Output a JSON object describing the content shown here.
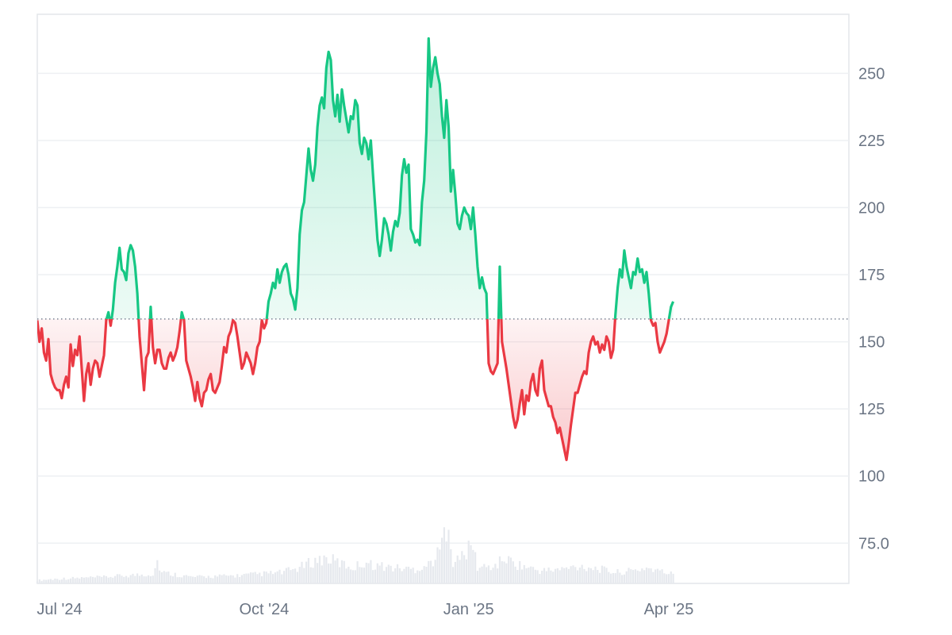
{
  "chart_data": {
    "type": "area",
    "title": "",
    "xlabel": "",
    "ylabel": "",
    "baseline_value": 158.5,
    "ylim": [
      60,
      272
    ],
    "y_ticks": [
      {
        "value": 250,
        "label": "250"
      },
      {
        "value": 225,
        "label": "225"
      },
      {
        "value": 200,
        "label": "200"
      },
      {
        "value": 175,
        "label": "175"
      },
      {
        "value": 150,
        "label": "150"
      },
      {
        "value": 125,
        "label": "125"
      },
      {
        "value": 100,
        "label": "100"
      },
      {
        "value": 75,
        "label": "75.0"
      }
    ],
    "x_ticks": [
      {
        "index": 10,
        "label": "Jul '24"
      },
      {
        "index": 102,
        "label": "Oct '24"
      },
      {
        "index": 194,
        "label": "Jan '25"
      },
      {
        "index": 284,
        "label": "Apr '25"
      }
    ],
    "x_range": [
      0,
      365
    ],
    "colors": {
      "above": "#16c784",
      "below": "#ea3943",
      "grid": "#eef0f3",
      "baseline": "#7a8393",
      "volume": "#e6e9ee"
    },
    "price_anchors": [
      [
        0,
        158
      ],
      [
        1,
        150
      ],
      [
        2,
        155
      ],
      [
        3,
        146
      ],
      [
        4,
        143
      ],
      [
        5,
        151
      ],
      [
        6,
        138
      ],
      [
        7,
        135
      ],
      [
        8,
        133
      ],
      [
        9,
        132
      ],
      [
        10,
        132
      ],
      [
        11,
        129
      ],
      [
        12,
        134
      ],
      [
        13,
        137
      ],
      [
        14,
        133
      ],
      [
        15,
        149
      ],
      [
        16,
        141
      ],
      [
        17,
        147
      ],
      [
        18,
        145
      ],
      [
        19,
        152
      ],
      [
        20,
        140
      ],
      [
        21,
        128
      ],
      [
        22,
        138
      ],
      [
        23,
        142
      ],
      [
        24,
        134
      ],
      [
        25,
        140
      ],
      [
        26,
        143
      ],
      [
        27,
        142
      ],
      [
        28,
        137
      ],
      [
        29,
        141
      ],
      [
        30,
        145
      ],
      [
        31,
        158
      ],
      [
        32,
        161
      ],
      [
        33,
        156
      ],
      [
        34,
        162
      ],
      [
        35,
        172
      ],
      [
        36,
        178
      ],
      [
        37,
        185
      ],
      [
        38,
        177
      ],
      [
        39,
        176
      ],
      [
        40,
        173
      ],
      [
        41,
        183
      ],
      [
        42,
        186
      ],
      [
        43,
        184
      ],
      [
        44,
        178
      ],
      [
        45,
        168
      ],
      [
        46,
        152
      ],
      [
        47,
        142
      ],
      [
        48,
        132
      ],
      [
        49,
        144
      ],
      [
        50,
        146
      ],
      [
        51,
        163
      ],
      [
        52,
        148
      ],
      [
        53,
        142
      ],
      [
        54,
        147
      ],
      [
        55,
        147
      ],
      [
        56,
        142
      ],
      [
        57,
        140
      ],
      [
        58,
        140
      ],
      [
        59,
        144
      ],
      [
        60,
        146
      ],
      [
        61,
        143
      ],
      [
        62,
        145
      ],
      [
        63,
        148
      ],
      [
        64,
        154
      ],
      [
        65,
        161
      ],
      [
        66,
        158
      ],
      [
        67,
        143
      ],
      [
        68,
        140
      ],
      [
        69,
        137
      ],
      [
        70,
        133
      ],
      [
        71,
        128
      ],
      [
        72,
        135
      ],
      [
        73,
        129
      ],
      [
        74,
        126
      ],
      [
        75,
        131
      ],
      [
        76,
        132
      ],
      [
        77,
        136
      ],
      [
        78,
        138
      ],
      [
        79,
        132
      ],
      [
        80,
        131
      ],
      [
        81,
        133
      ],
      [
        82,
        135
      ],
      [
        83,
        141
      ],
      [
        84,
        148
      ],
      [
        85,
        146
      ],
      [
        86,
        152
      ],
      [
        87,
        154
      ],
      [
        88,
        158
      ],
      [
        89,
        157
      ],
      [
        90,
        152
      ],
      [
        91,
        146
      ],
      [
        92,
        140
      ],
      [
        93,
        142
      ],
      [
        94,
        146
      ],
      [
        95,
        144
      ],
      [
        96,
        142
      ],
      [
        97,
        138
      ],
      [
        98,
        142
      ],
      [
        99,
        148
      ],
      [
        100,
        150
      ],
      [
        101,
        158
      ],
      [
        102,
        155
      ],
      [
        103,
        157
      ],
      [
        104,
        165
      ],
      [
        105,
        168
      ],
      [
        106,
        172
      ],
      [
        107,
        170
      ],
      [
        108,
        177
      ],
      [
        109,
        172
      ],
      [
        110,
        176
      ],
      [
        111,
        178
      ],
      [
        112,
        179
      ],
      [
        113,
        175
      ],
      [
        114,
        168
      ],
      [
        115,
        166
      ],
      [
        116,
        162
      ],
      [
        117,
        170
      ],
      [
        118,
        190
      ],
      [
        119,
        199
      ],
      [
        120,
        202
      ],
      [
        121,
        212
      ],
      [
        122,
        222
      ],
      [
        123,
        214
      ],
      [
        124,
        210
      ],
      [
        125,
        216
      ],
      [
        126,
        230
      ],
      [
        127,
        238
      ],
      [
        128,
        241
      ],
      [
        129,
        237
      ],
      [
        130,
        252
      ],
      [
        131,
        258
      ],
      [
        132,
        255
      ],
      [
        133,
        240
      ],
      [
        134,
        234
      ],
      [
        135,
        242
      ],
      [
        136,
        232
      ],
      [
        137,
        244
      ],
      [
        138,
        238
      ],
      [
        139,
        233
      ],
      [
        140,
        228
      ],
      [
        141,
        234
      ],
      [
        142,
        233
      ],
      [
        143,
        240
      ],
      [
        144,
        238
      ],
      [
        145,
        224
      ],
      [
        146,
        220
      ],
      [
        147,
        226
      ],
      [
        148,
        224
      ],
      [
        149,
        218
      ],
      [
        150,
        225
      ],
      [
        151,
        212
      ],
      [
        152,
        200
      ],
      [
        153,
        188
      ],
      [
        154,
        182
      ],
      [
        155,
        188
      ],
      [
        156,
        196
      ],
      [
        157,
        194
      ],
      [
        158,
        190
      ],
      [
        159,
        184
      ],
      [
        160,
        191
      ],
      [
        161,
        195
      ],
      [
        162,
        193
      ],
      [
        163,
        198
      ],
      [
        164,
        212
      ],
      [
        165,
        218
      ],
      [
        166,
        213
      ],
      [
        167,
        216
      ],
      [
        168,
        192
      ],
      [
        169,
        190
      ],
      [
        170,
        187
      ],
      [
        171,
        188
      ],
      [
        172,
        186
      ],
      [
        173,
        202
      ],
      [
        174,
        210
      ],
      [
        175,
        228
      ],
      [
        176,
        263
      ],
      [
        177,
        245
      ],
      [
        178,
        252
      ],
      [
        179,
        256
      ],
      [
        180,
        250
      ],
      [
        181,
        246
      ],
      [
        182,
        234
      ],
      [
        183,
        226
      ],
      [
        184,
        240
      ],
      [
        185,
        230
      ],
      [
        186,
        206
      ],
      [
        187,
        214
      ],
      [
        188,
        205
      ],
      [
        189,
        194
      ],
      [
        190,
        192
      ],
      [
        191,
        197
      ],
      [
        192,
        200
      ],
      [
        193,
        198
      ],
      [
        194,
        197
      ],
      [
        195,
        192
      ],
      [
        196,
        200
      ],
      [
        197,
        190
      ],
      [
        198,
        178
      ],
      [
        199,
        170
      ],
      [
        200,
        174
      ],
      [
        201,
        170
      ],
      [
        202,
        168
      ],
      [
        203,
        142
      ],
      [
        204,
        139
      ],
      [
        205,
        138
      ],
      [
        206,
        140
      ],
      [
        207,
        142
      ],
      [
        208,
        178
      ],
      [
        209,
        150
      ],
      [
        210,
        145
      ],
      [
        211,
        140
      ],
      [
        212,
        134
      ],
      [
        213,
        128
      ],
      [
        214,
        122
      ],
      [
        215,
        118
      ],
      [
        216,
        121
      ],
      [
        217,
        127
      ],
      [
        218,
        132
      ],
      [
        219,
        123
      ],
      [
        220,
        130
      ],
      [
        221,
        128
      ],
      [
        222,
        135
      ],
      [
        223,
        138
      ],
      [
        224,
        132
      ],
      [
        225,
        130
      ],
      [
        226,
        140
      ],
      [
        227,
        143
      ],
      [
        228,
        132
      ],
      [
        229,
        129
      ],
      [
        230,
        126
      ],
      [
        231,
        126
      ],
      [
        232,
        122
      ],
      [
        233,
        120
      ],
      [
        234,
        116
      ],
      [
        235,
        118
      ],
      [
        236,
        114
      ],
      [
        237,
        110
      ],
      [
        238,
        106
      ],
      [
        239,
        112
      ],
      [
        240,
        119
      ],
      [
        241,
        125
      ],
      [
        242,
        131
      ],
      [
        243,
        131
      ],
      [
        244,
        134
      ],
      [
        245,
        137
      ],
      [
        246,
        139
      ],
      [
        247,
        138
      ],
      [
        248,
        146
      ],
      [
        249,
        150
      ],
      [
        250,
        152
      ],
      [
        251,
        149
      ],
      [
        252,
        150
      ],
      [
        253,
        146
      ],
      [
        254,
        149
      ],
      [
        255,
        147
      ],
      [
        256,
        152
      ],
      [
        257,
        150
      ],
      [
        258,
        144
      ],
      [
        259,
        147
      ],
      [
        260,
        160
      ],
      [
        261,
        170
      ],
      [
        262,
        177
      ],
      [
        263,
        174
      ],
      [
        264,
        184
      ],
      [
        265,
        178
      ],
      [
        266,
        174
      ],
      [
        267,
        170
      ],
      [
        268,
        176
      ],
      [
        269,
        175
      ],
      [
        270,
        181
      ],
      [
        271,
        176
      ],
      [
        272,
        177
      ],
      [
        273,
        172
      ],
      [
        274,
        176
      ],
      [
        275,
        168
      ],
      [
        276,
        158
      ],
      [
        277,
        156
      ],
      [
        278,
        157
      ],
      [
        279,
        150
      ],
      [
        280,
        146
      ],
      [
        281,
        148
      ],
      [
        282,
        150
      ],
      [
        283,
        153
      ],
      [
        284,
        158
      ],
      [
        285,
        163
      ],
      [
        286,
        165
      ]
    ],
    "volume_anchors": [
      [
        0,
        2
      ],
      [
        10,
        3
      ],
      [
        30,
        4
      ],
      [
        40,
        5
      ],
      [
        52,
        6
      ],
      [
        54,
        14
      ],
      [
        56,
        7
      ],
      [
        70,
        4
      ],
      [
        90,
        5
      ],
      [
        100,
        6
      ],
      [
        110,
        7
      ],
      [
        118,
        10
      ],
      [
        124,
        14
      ],
      [
        130,
        16
      ],
      [
        136,
        13
      ],
      [
        142,
        10
      ],
      [
        148,
        14
      ],
      [
        150,
        12
      ],
      [
        160,
        10
      ],
      [
        170,
        9
      ],
      [
        176,
        12
      ],
      [
        180,
        18
      ],
      [
        183,
        30
      ],
      [
        185,
        45
      ],
      [
        187,
        12
      ],
      [
        190,
        16
      ],
      [
        196,
        24
      ],
      [
        198,
        10
      ],
      [
        206,
        11
      ],
      [
        210,
        16
      ],
      [
        216,
        12
      ],
      [
        226,
        8
      ],
      [
        236,
        9
      ],
      [
        244,
        11
      ],
      [
        250,
        10
      ],
      [
        260,
        7
      ],
      [
        268,
        8
      ],
      [
        274,
        10
      ],
      [
        282,
        7
      ],
      [
        286,
        6
      ]
    ]
  }
}
